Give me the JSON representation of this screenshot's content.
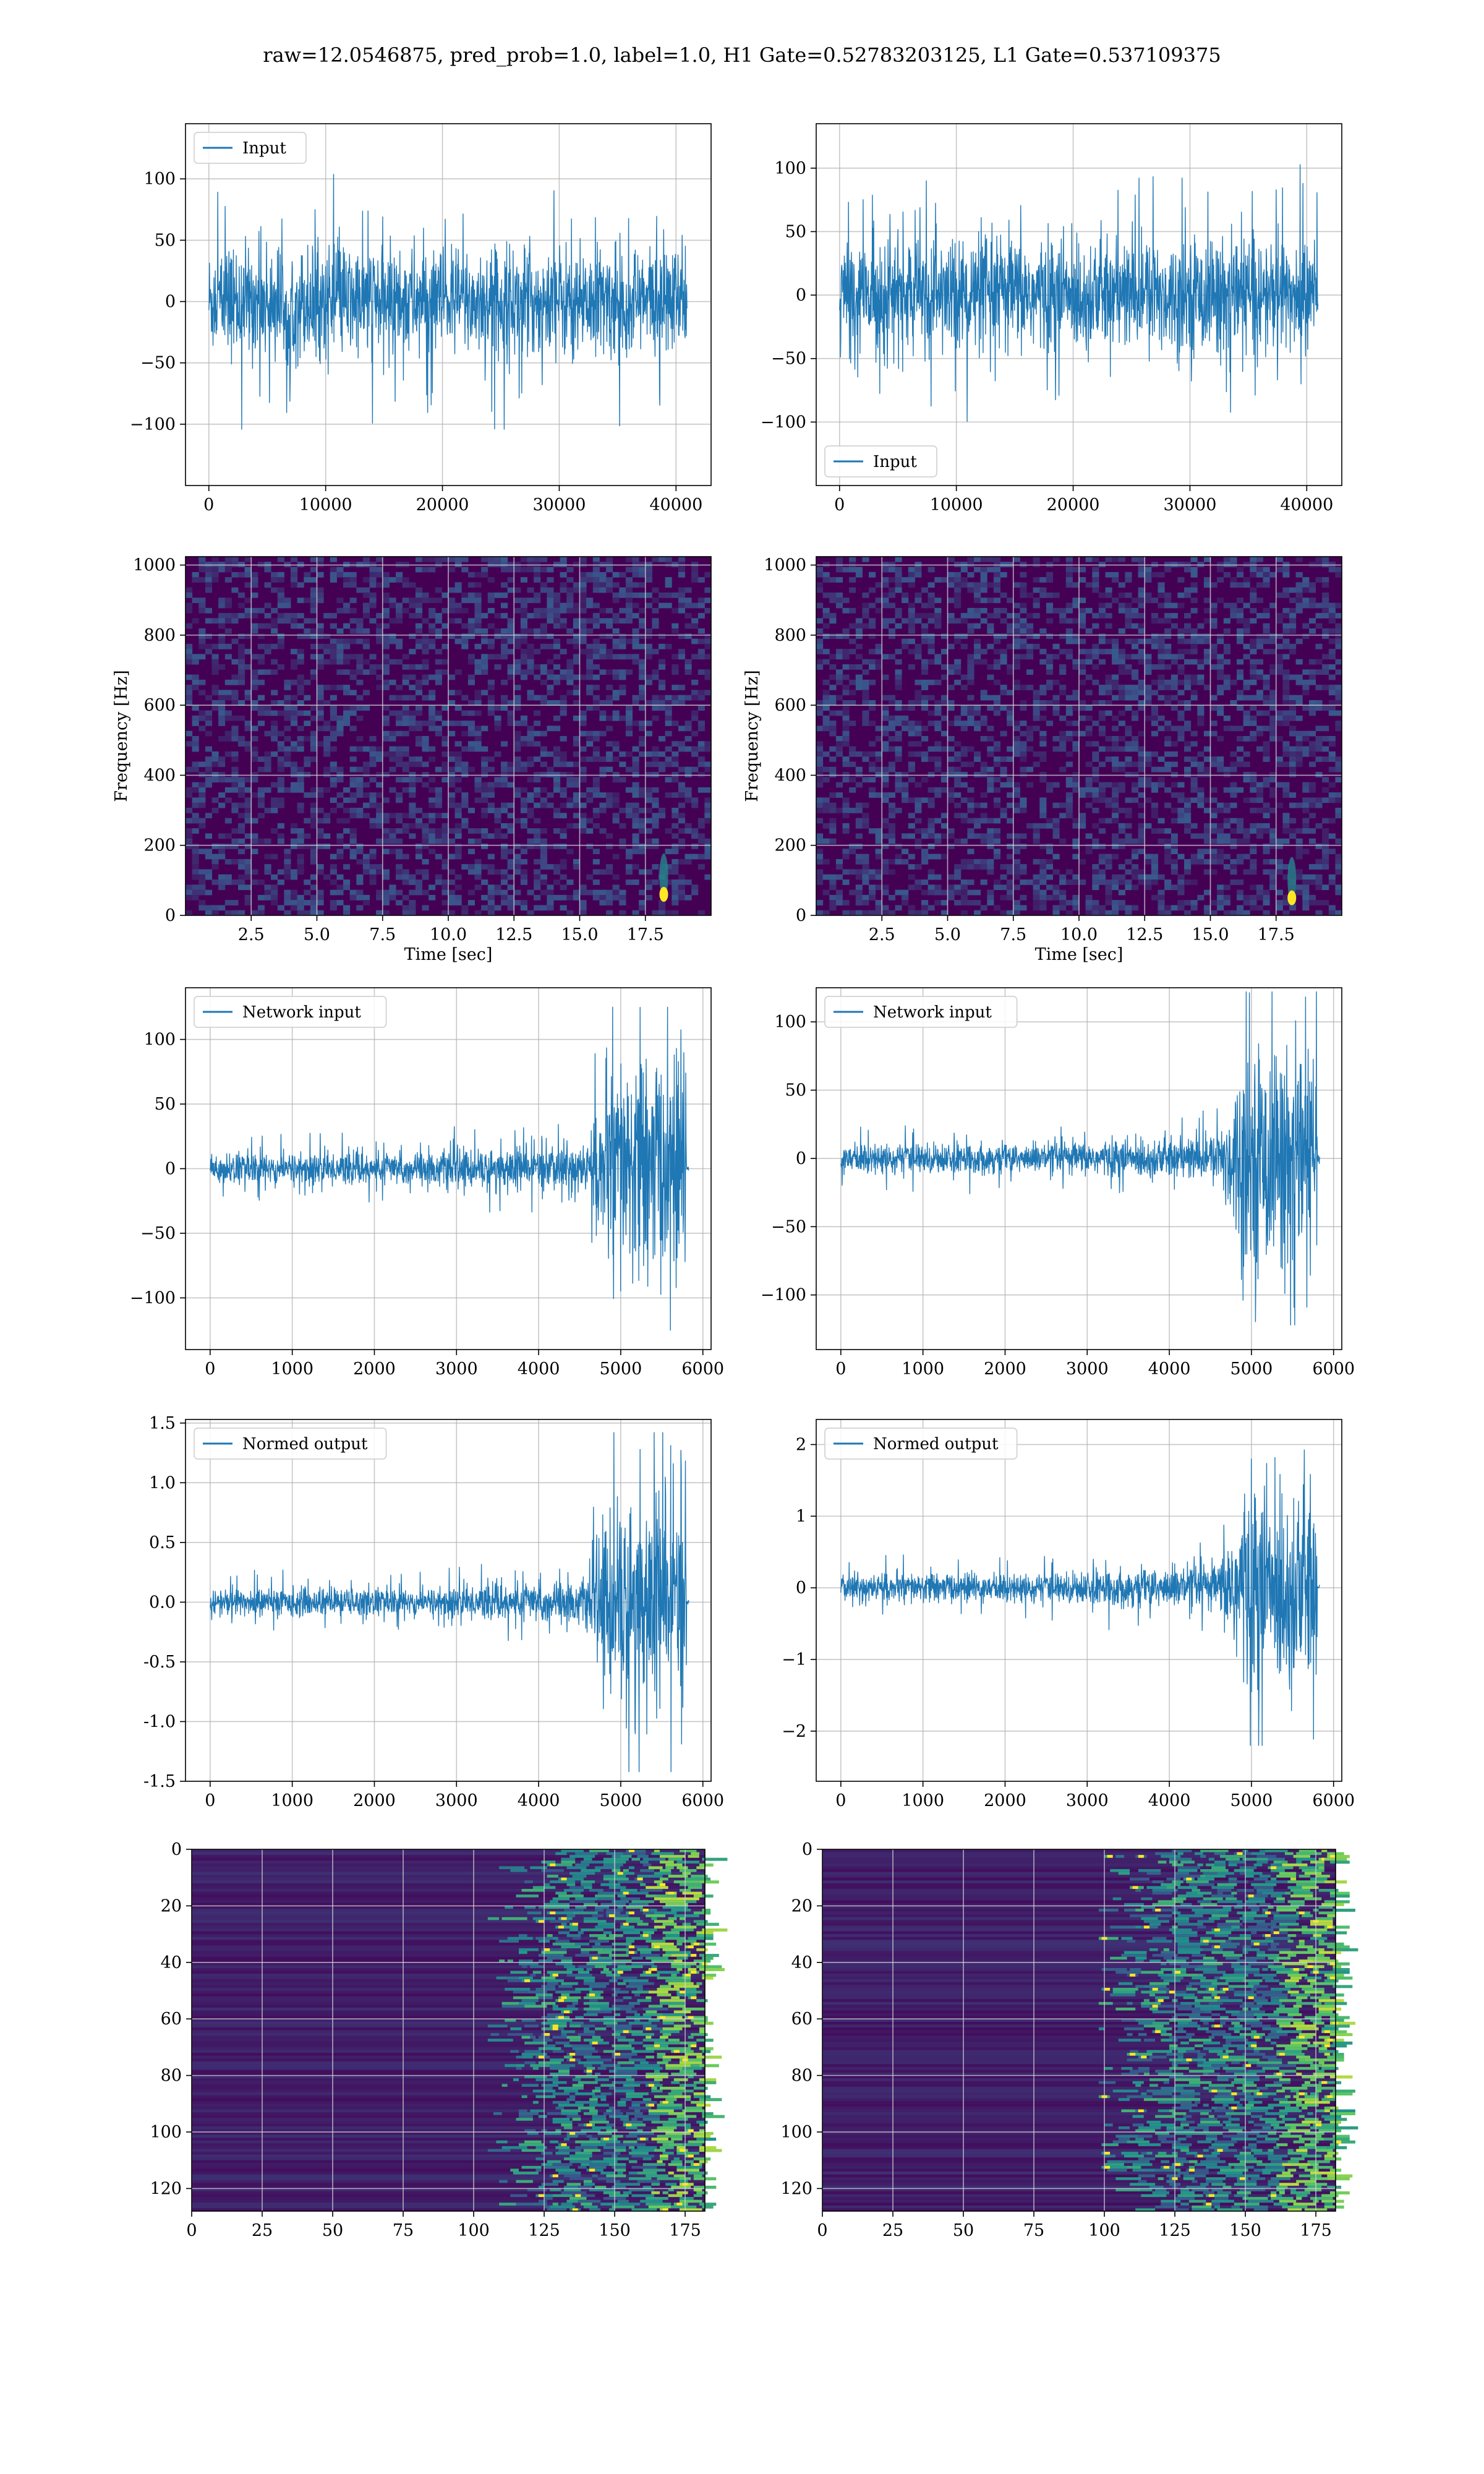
{
  "suptitle": "raw=12.0546875, pred_prob=1.0, label=1.0, H1 Gate=0.52783203125, L1 Gate=0.537109375",
  "colors": {
    "line": "#1f77b4",
    "grid": "#b0b0b0",
    "viridis_low": "#440154",
    "viridis_mid": "#21918c",
    "viridis_high": "#fde725"
  },
  "chart_data": [
    {
      "id": "input-h1",
      "type": "line",
      "title": "",
      "series": [
        {
          "name": "Input",
          "envelope": "stationary-noise"
        }
      ],
      "legend": "top-left",
      "xlim": [
        -2000,
        43000
      ],
      "ylim": [
        -150,
        145
      ],
      "xticks": [
        0,
        10000,
        20000,
        30000,
        40000
      ],
      "yticks": [
        -100,
        -50,
        0,
        50,
        100
      ],
      "x_extent": [
        0,
        40960
      ],
      "amplitude": 50,
      "peak": 127,
      "grid": true,
      "xlabel": "",
      "ylabel": ""
    },
    {
      "id": "input-l1",
      "type": "line",
      "title": "",
      "series": [
        {
          "name": "Input",
          "envelope": "stationary-noise"
        }
      ],
      "legend": "bottom-left",
      "xlim": [
        -2000,
        43000
      ],
      "ylim": [
        -150,
        135
      ],
      "xticks": [
        0,
        10000,
        20000,
        30000,
        40000
      ],
      "yticks": [
        -100,
        -50,
        0,
        50,
        100
      ],
      "x_extent": [
        0,
        40960
      ],
      "amplitude": 50,
      "peak": 128,
      "grid": true,
      "xlabel": "",
      "ylabel": ""
    },
    {
      "id": "spec-h1",
      "type": "heatmap",
      "title": "",
      "xlim": [
        0,
        20
      ],
      "ylim": [
        0,
        1024
      ],
      "xticks": [
        2.5,
        5.0,
        7.5,
        10.0,
        12.5,
        15.0,
        17.5
      ],
      "yticks": [
        0,
        200,
        400,
        600,
        800,
        1000
      ],
      "xlabel": "Time [sec]",
      "ylabel": "Frequency [Hz]",
      "colormap": "viridis",
      "grid": true,
      "hotspot": {
        "x": 18.2,
        "y": 60
      }
    },
    {
      "id": "spec-l1",
      "type": "heatmap",
      "title": "",
      "xlim": [
        0,
        20
      ],
      "ylim": [
        0,
        1024
      ],
      "xticks": [
        2.5,
        5.0,
        7.5,
        10.0,
        12.5,
        15.0,
        17.5
      ],
      "yticks": [
        0,
        200,
        400,
        600,
        800,
        1000
      ],
      "xlabel": "Time [sec]",
      "ylabel": "Frequency [Hz]",
      "colormap": "viridis",
      "grid": true,
      "hotspot": {
        "x": 18.1,
        "y": 50
      }
    },
    {
      "id": "net-h1",
      "type": "line",
      "title": "",
      "series": [
        {
          "name": "Network input",
          "envelope": "chirp"
        }
      ],
      "legend": "top-left",
      "xlim": [
        -300,
        6100
      ],
      "ylim": [
        -140,
        140
      ],
      "xticks": [
        0,
        1000,
        2000,
        3000,
        4000,
        5000,
        6000
      ],
      "yticks": [
        -100,
        -50,
        0,
        50,
        100
      ],
      "x_extent": [
        0,
        5830
      ],
      "base": 14,
      "peak": 125,
      "end": 5830,
      "grid": true,
      "xlabel": "",
      "ylabel": ""
    },
    {
      "id": "net-l1",
      "type": "line",
      "title": "",
      "series": [
        {
          "name": "Network input",
          "envelope": "chirp"
        }
      ],
      "legend": "top-left",
      "xlim": [
        -300,
        6100
      ],
      "ylim": [
        -140,
        125
      ],
      "xticks": [
        0,
        1000,
        2000,
        3000,
        4000,
        5000,
        6000
      ],
      "yticks": [
        -100,
        -50,
        0,
        50,
        100
      ],
      "x_extent": [
        0,
        5830
      ],
      "base": 12,
      "peak": 122,
      "end": 5830,
      "grid": true,
      "xlabel": "",
      "ylabel": ""
    },
    {
      "id": "norm-h1",
      "type": "line",
      "title": "",
      "series": [
        {
          "name": "Normed output",
          "envelope": "chirp"
        }
      ],
      "legend": "top-left",
      "xlim": [
        -300,
        6100
      ],
      "ylim": [
        -1.5,
        1.53
      ],
      "xticks": [
        0,
        1000,
        2000,
        3000,
        4000,
        5000,
        6000
      ],
      "yticks": [
        -1.5,
        -1.0,
        -0.5,
        0.0,
        0.5,
        1.0,
        1.5
      ],
      "x_extent": [
        0,
        5830
      ],
      "base": 0.13,
      "peak": 1.42,
      "end": 5830,
      "grid": true,
      "xlabel": "",
      "ylabel": ""
    },
    {
      "id": "norm-l1",
      "type": "line",
      "title": "",
      "series": [
        {
          "name": "Normed output",
          "envelope": "chirp"
        }
      ],
      "legend": "top-left",
      "xlim": [
        -300,
        6100
      ],
      "ylim": [
        -2.7,
        2.35
      ],
      "xticks": [
        0,
        1000,
        2000,
        3000,
        4000,
        5000,
        6000
      ],
      "yticks": [
        -2,
        -1,
        0,
        1,
        2
      ],
      "x_extent": [
        0,
        5830
      ],
      "base": 0.22,
      "peak": 2.2,
      "end": 5830,
      "grid": true,
      "xlabel": "",
      "ylabel": ""
    },
    {
      "id": "gate-h1",
      "type": "heatmap",
      "title": "",
      "xlim": [
        0,
        182
      ],
      "ylim": [
        128,
        0
      ],
      "xticks": [
        0,
        25,
        50,
        75,
        100,
        125,
        150,
        175
      ],
      "yticks": [
        0,
        20,
        40,
        60,
        80,
        100,
        120
      ],
      "xlabel": "",
      "ylabel": "",
      "colormap": "viridis",
      "grid": true,
      "activity_start": 125
    },
    {
      "id": "gate-l1",
      "type": "heatmap",
      "title": "",
      "xlim": [
        0,
        182
      ],
      "ylim": [
        128,
        0
      ],
      "xticks": [
        0,
        25,
        50,
        75,
        100,
        125,
        150,
        175
      ],
      "yticks": [
        0,
        20,
        40,
        60,
        80,
        100,
        120
      ],
      "xlabel": "",
      "ylabel": "",
      "colormap": "viridis",
      "grid": true,
      "activity_start": 118
    }
  ]
}
